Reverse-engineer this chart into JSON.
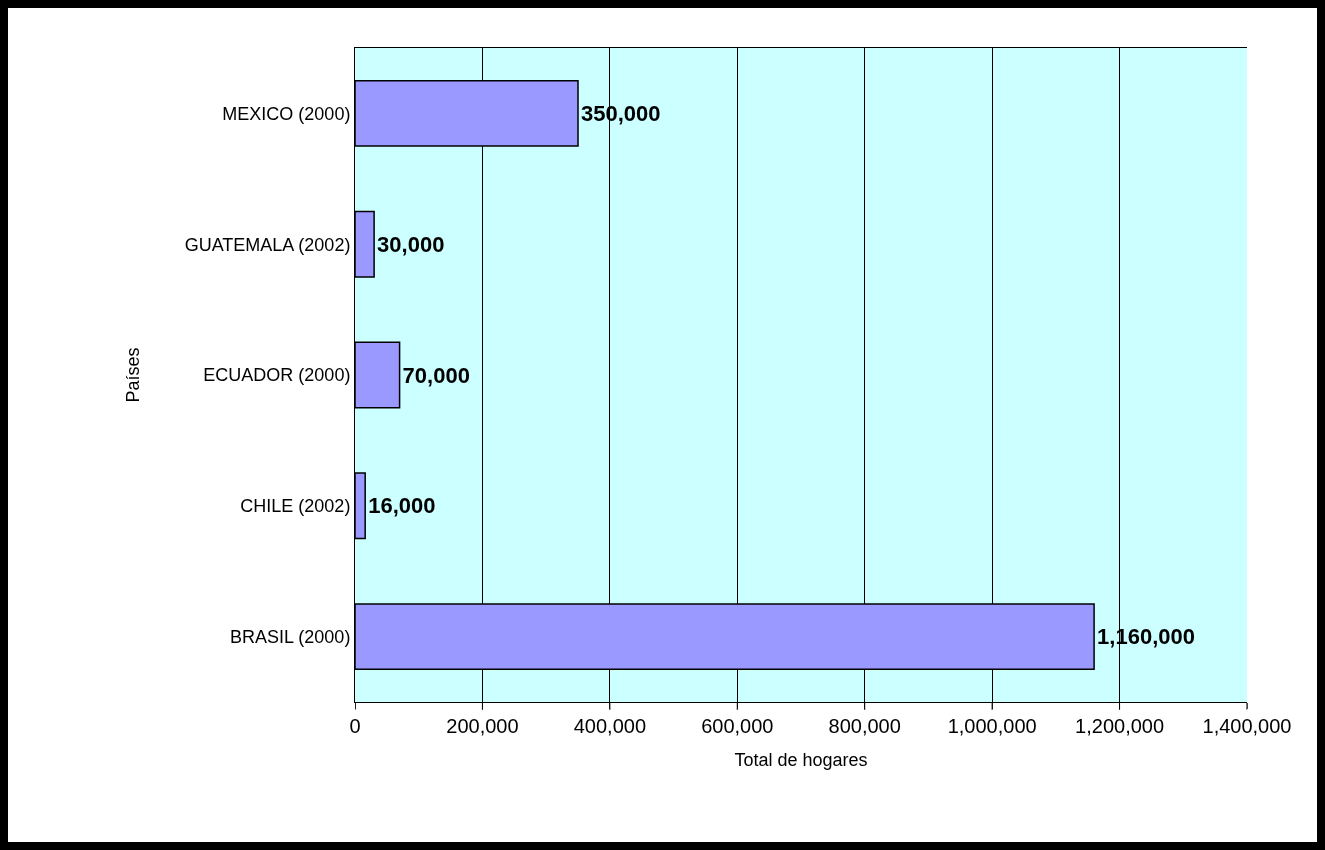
{
  "chart_data": {
    "type": "bar",
    "orientation": "horizontal",
    "xlabel": "Total de hogares",
    "ylabel": "Países",
    "categories": [
      "MEXICO (2000)",
      "GUATEMALA (2002)",
      "ECUADOR (2000)",
      "CHILE (2002)",
      "BRASIL (2000)"
    ],
    "values": [
      350000,
      30000,
      70000,
      16000,
      1160000
    ],
    "value_labels": [
      "350,000",
      "30,000",
      "70,000",
      "16,000",
      "1,160,000"
    ],
    "color": "#9999ff",
    "xlim": [
      0,
      1400000
    ],
    "xticks": [
      0,
      {
        "value": 200000,
        "label": "200,000"
      },
      {
        "value": 400000,
        "label": "400,000"
      },
      {
        "value": 600000,
        "label": "600,000"
      },
      {
        "value": 800000,
        "label": "800,000"
      },
      {
        "value": 1000000,
        "label": "1,000,000"
      },
      {
        "value": 1200000,
        "label": "1,200,000"
      },
      {
        "value": 1400000,
        "label": "1,400,000"
      }
    ],
    "grid": "x",
    "legend": false
  }
}
